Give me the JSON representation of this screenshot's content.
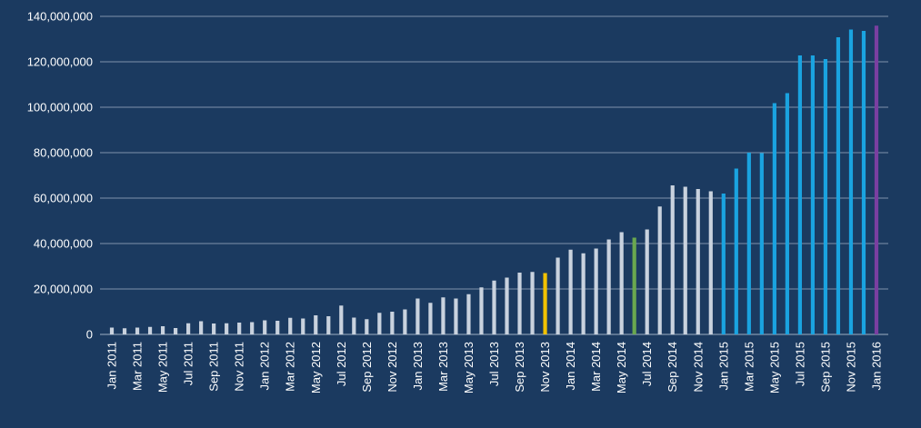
{
  "chart_data": {
    "type": "bar",
    "title": "",
    "xlabel": "",
    "ylabel": "",
    "ylim": [
      0,
      140000000
    ],
    "yticks": [
      0,
      20000000,
      40000000,
      60000000,
      80000000,
      100000000,
      120000000,
      140000000
    ],
    "ytick_labels": [
      "0",
      "20,000,000",
      "40,000,000",
      "60,000,000",
      "80,000,000",
      "100,000,000",
      "120,000,000",
      "140,000,000"
    ],
    "grid": true,
    "categories": [
      "Jan 2011",
      "Feb 2011",
      "Mar 2011",
      "Apr 2011",
      "May 2011",
      "Jun 2011",
      "Jul 2011",
      "Aug 2011",
      "Sep 2011",
      "Oct 2011",
      "Nov 2011",
      "Dec 2011",
      "Jan 2012",
      "Feb 2012",
      "Mar 2012",
      "Apr 2012",
      "May 2012",
      "Jun 2012",
      "Jul 2012",
      "Aug 2012",
      "Sep 2012",
      "Oct 2012",
      "Nov 2012",
      "Dec 2012",
      "Jan 2013",
      "Feb 2013",
      "Mar 2013",
      "Apr 2013",
      "May 2013",
      "Jun 2013",
      "Jul 2013",
      "Aug 2013",
      "Sep 2013",
      "Oct 2013",
      "Nov 2013",
      "Dec 2013",
      "Jan 2014",
      "Feb 2014",
      "Mar 2014",
      "Apr 2014",
      "May 2014",
      "Jun 2014",
      "Jul 2014",
      "Aug 2014",
      "Sep 2014",
      "Oct 2014",
      "Nov 2014",
      "Dec 2014",
      "Jan 2015",
      "Feb 2015",
      "Mar 2015",
      "Apr 2015",
      "May 2015",
      "Jun 2015",
      "Jul 2015",
      "Aug 2015",
      "Sep 2015",
      "Oct 2015",
      "Nov 2015",
      "Dec 2015",
      "Jan 2016"
    ],
    "tick_labels_shown": [
      "Jan 2011",
      "Mar 2011",
      "May 2011",
      "Jul 2011",
      "Sep 2011",
      "Nov 2011",
      "Jan 2012",
      "Mar 2012",
      "May 2012",
      "Jul 2012",
      "Sep 2012",
      "Nov 2012",
      "Jan 2013",
      "Mar 2013",
      "May 2013",
      "Jul 2013",
      "Sep 2013",
      "Nov 2013",
      "Jan 2014",
      "Mar 2014",
      "May 2014",
      "Jul 2014",
      "Sep 2014",
      "Nov 2014",
      "Jan 2015",
      "Mar 2015",
      "May 2015",
      "Jul 2015",
      "Sep 2015",
      "Nov 2015",
      "Jan 2016"
    ],
    "values": [
      3000000,
      2700000,
      3000000,
      3300000,
      3600000,
      2800000,
      4900000,
      5800000,
      4800000,
      4900000,
      5200000,
      5400000,
      6200000,
      6000000,
      7300000,
      7000000,
      8400000,
      8000000,
      12700000,
      7400000,
      6700000,
      9500000,
      10000000,
      11000000,
      15800000,
      13900000,
      16300000,
      15800000,
      17700000,
      20700000,
      23700000,
      25000000,
      27200000,
      27500000,
      27000000,
      33800000,
      37300000,
      35700000,
      37800000,
      41800000,
      45000000,
      42600000,
      46200000,
      56300000,
      65600000,
      65000000,
      64000000,
      63000000,
      62000000,
      73000000,
      80000000,
      79800000,
      101800000,
      106200000,
      122800000,
      122800000,
      121200000,
      130800000,
      134200000,
      133600000,
      135900000
    ],
    "colors": {
      "default": "#c9d2de",
      "highlight_2013_11": "#f2c200",
      "highlight_2014_06": "#6aa84f",
      "year_2015": "#1aa3e0",
      "highlight_2016_01": "#7a3fa0"
    },
    "bar_colors": [
      "default",
      "default",
      "default",
      "default",
      "default",
      "default",
      "default",
      "default",
      "default",
      "default",
      "default",
      "default",
      "default",
      "default",
      "default",
      "default",
      "default",
      "default",
      "default",
      "default",
      "default",
      "default",
      "default",
      "default",
      "default",
      "default",
      "default",
      "default",
      "default",
      "default",
      "default",
      "default",
      "default",
      "default",
      "highlight_2013_11",
      "default",
      "default",
      "default",
      "default",
      "default",
      "default",
      "highlight_2014_06",
      "default",
      "default",
      "default",
      "default",
      "default",
      "default",
      "year_2015",
      "year_2015",
      "year_2015",
      "year_2015",
      "year_2015",
      "year_2015",
      "year_2015",
      "year_2015",
      "year_2015",
      "year_2015",
      "year_2015",
      "year_2015",
      "highlight_2016_01"
    ]
  }
}
